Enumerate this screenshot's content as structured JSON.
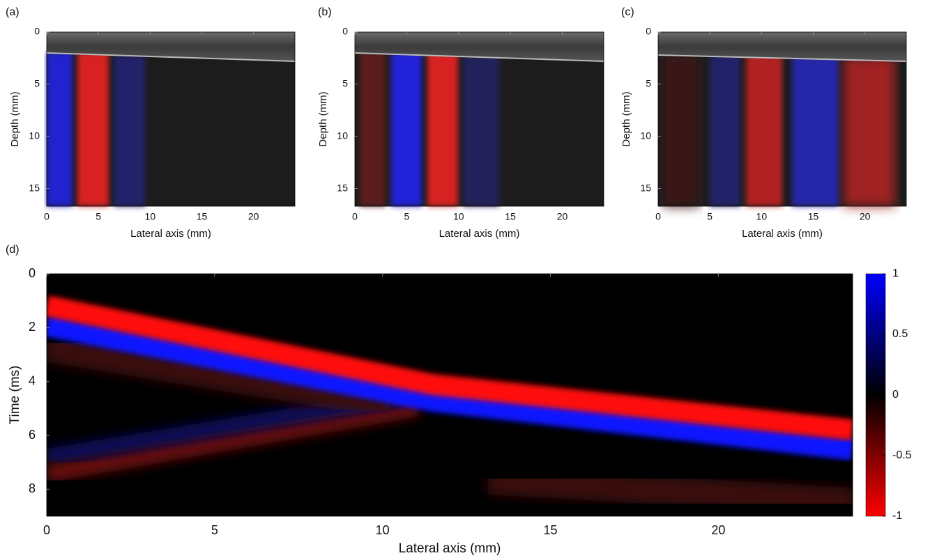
{
  "chart_data": [
    {
      "type": "image",
      "panel_label": "(a)",
      "xlabel": "Lateral axis (mm)",
      "ylabel": "Depth (mm)",
      "xlim": [
        0,
        24
      ],
      "xticks": [
        0,
        5,
        10,
        15,
        20
      ],
      "ylim": [
        0,
        16.7
      ],
      "yticks": [
        0,
        5,
        10,
        15
      ],
      "y_reversed": true
    },
    {
      "type": "image",
      "panel_label": "(b)",
      "xlabel": "Lateral axis (mm)",
      "ylabel": "Depth (mm)",
      "xlim": [
        0,
        24
      ],
      "xticks": [
        0,
        5,
        10,
        15,
        20
      ],
      "ylim": [
        0,
        16.7
      ],
      "yticks": [
        0,
        5,
        10,
        15
      ],
      "y_reversed": true
    },
    {
      "type": "image",
      "panel_label": "(c)",
      "xlabel": "Lateral axis (mm)",
      "ylabel": "Depth (mm)",
      "xlim": [
        0,
        24
      ],
      "xticks": [
        0,
        5,
        10,
        15,
        20
      ],
      "ylim": [
        0,
        16.7
      ],
      "yticks": [
        0,
        5,
        10,
        15
      ],
      "y_reversed": true
    },
    {
      "type": "heatmap",
      "panel_label": "(d)",
      "xlabel": "Lateral axis (mm)",
      "ylabel": "Time (ms)",
      "xlim": [
        0,
        24
      ],
      "xticks": [
        0,
        5,
        10,
        15,
        20
      ],
      "ylim": [
        0,
        9
      ],
      "yticks": [
        0,
        2,
        4,
        6,
        8
      ],
      "y_reversed": true,
      "colorbar": {
        "clim": [
          -1,
          1
        ],
        "ticks": [
          1,
          0.5,
          0,
          -0.5,
          -1
        ]
      }
    }
  ]
}
